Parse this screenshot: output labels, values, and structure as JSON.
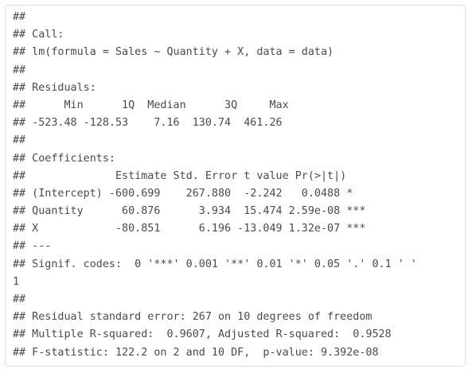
{
  "console_output": {
    "lines": [
      "##",
      "## Call:",
      "## lm(formula = Sales ~ Quantity + X, data = data)",
      "##",
      "## Residuals:",
      "##      Min      1Q  Median      3Q     Max",
      "## -523.48 -128.53    7.16  130.74  461.26",
      "##",
      "## Coefficients:",
      "##              Estimate Std. Error t value Pr(>|t|)",
      "## (Intercept) -600.699    267.880  -2.242   0.0488 *",
      "## Quantity      60.876      3.934  15.474 2.59e-08 ***",
      "## X            -80.851      6.196 -13.049 1.32e-07 ***",
      "## ---",
      "## Signif. codes:  0 '***' 0.001 '**' 0.01 '*' 0.05 '.' 0.1 ' '",
      "1",
      "##",
      "## Residual standard error: 267 on 10 degrees of freedom",
      "## Multiple R-squared:  0.9607, Adjusted R-squared:  0.9528",
      "## F-statistic: 122.2 on 2 and 10 DF,  p-value: 9.392e-08"
    ]
  }
}
